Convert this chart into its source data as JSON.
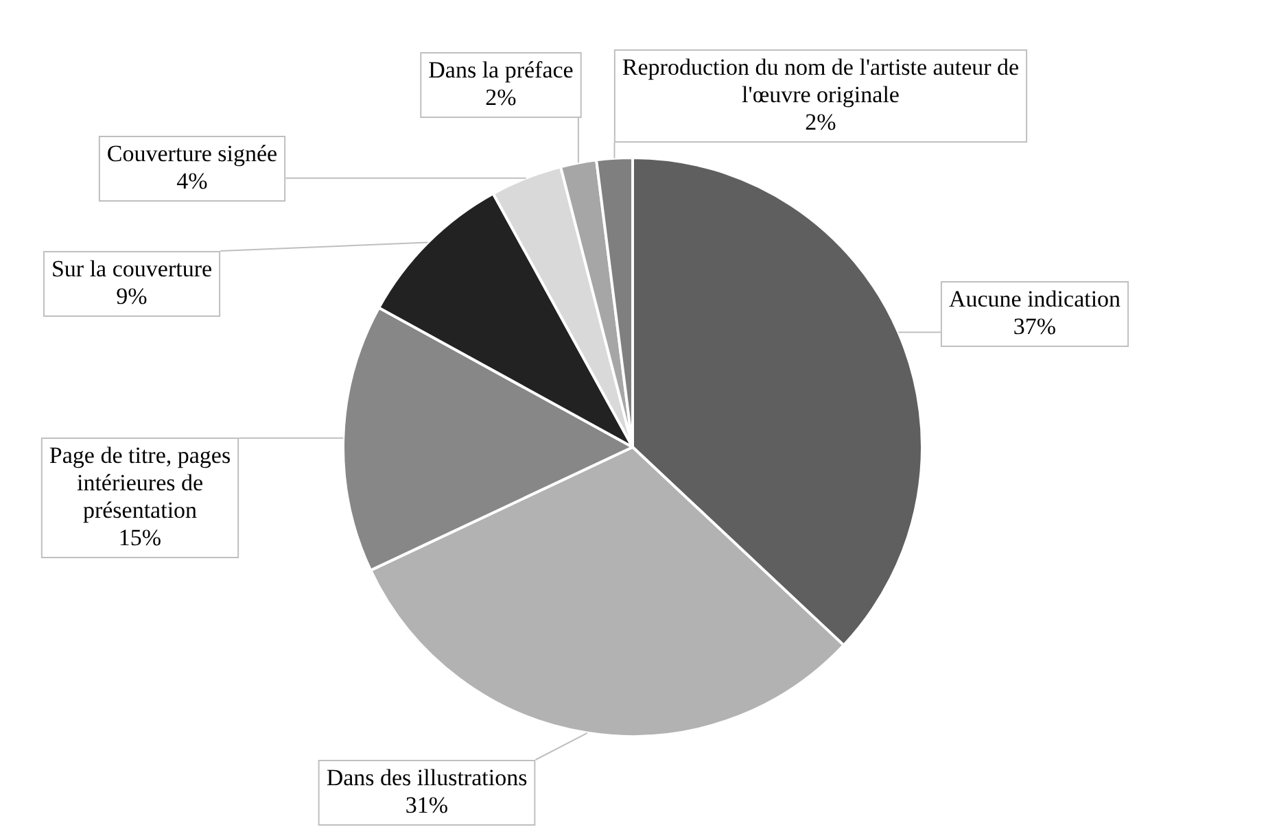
{
  "chart_data": {
    "type": "pie",
    "categories": [
      "Aucune indication",
      "Dans des illustrations",
      "Page de titre, pages intérieures de présentation",
      "Sur la couverture",
      "Couverture signée",
      "Dans la préface",
      "Reproduction du nom de l'artiste auteur de l'œuvre originale"
    ],
    "values": [
      37,
      31,
      15,
      9,
      4,
      2,
      2
    ],
    "value_labels": [
      "37%",
      "31%",
      "15%",
      "9%",
      "4%",
      "2%",
      "2%"
    ],
    "colors": [
      "#5f5f5f",
      "#b2b2b2",
      "#878787",
      "#222222",
      "#d9d9d9",
      "#a6a6a6",
      "#7f7f7f"
    ],
    "legend": false
  }
}
